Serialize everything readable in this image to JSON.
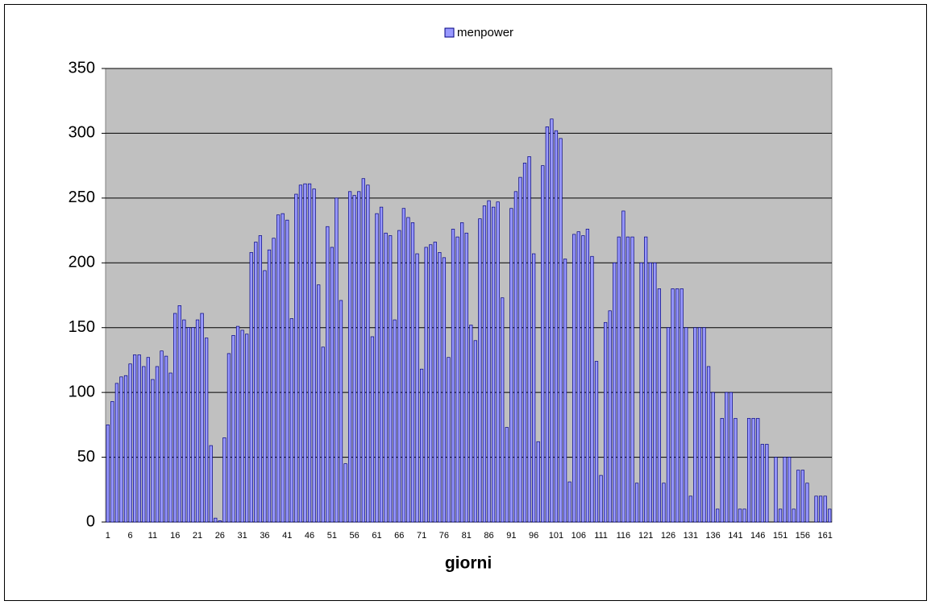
{
  "chart_data": {
    "type": "bar",
    "x_label": "giorni",
    "categories": [
      "1",
      null,
      null,
      null,
      null,
      "6",
      null,
      null,
      null,
      null,
      "11",
      null,
      null,
      null,
      null,
      "16",
      null,
      null,
      null,
      null,
      "21",
      null,
      null,
      null,
      null,
      "26",
      null,
      null,
      null,
      null,
      "31",
      null,
      null,
      null,
      null,
      "36",
      null,
      null,
      null,
      null,
      "41",
      null,
      null,
      null,
      null,
      "46",
      null,
      null,
      null,
      null,
      "51",
      null,
      null,
      null,
      null,
      "56",
      null,
      null,
      null,
      null,
      "61",
      null,
      null,
      null,
      null,
      "66",
      null,
      null,
      null,
      null,
      "71",
      null,
      null,
      null,
      null,
      "76",
      null,
      null,
      null,
      null,
      "81",
      null,
      null,
      null,
      null,
      "86",
      null,
      null,
      null,
      null,
      "91",
      null,
      null,
      null,
      null,
      "96",
      null,
      null,
      null,
      null,
      "101",
      null,
      null,
      null,
      null,
      "106",
      null,
      null,
      null,
      null,
      "111",
      null,
      null,
      null,
      null,
      "116",
      null,
      null,
      null,
      null,
      "121",
      null,
      null,
      null,
      null,
      "126",
      null,
      null,
      null,
      null,
      "131",
      null,
      null,
      null,
      null,
      "136",
      null,
      null,
      null,
      null,
      "141",
      null,
      null,
      null,
      null,
      "146",
      null,
      null,
      null,
      null,
      "151",
      null,
      null,
      null,
      null,
      "156",
      null,
      null,
      null,
      null,
      "161",
      null
    ],
    "series": [
      {
        "name": "menpower",
        "color": "#9999ff",
        "values": [
          75,
          93,
          107,
          112,
          113,
          122,
          129,
          129,
          120,
          127,
          110,
          120,
          132,
          128,
          115,
          161,
          167,
          156,
          150,
          150,
          156,
          161,
          142,
          59,
          3,
          1,
          65,
          130,
          144,
          151,
          148,
          145,
          208,
          216,
          221,
          194,
          210,
          219,
          237,
          238,
          233,
          157,
          253,
          260,
          261,
          261,
          257,
          183,
          135,
          228,
          212,
          250,
          171,
          45,
          255,
          252,
          255,
          265,
          260,
          143,
          238,
          243,
          223,
          221,
          156,
          225,
          242,
          235,
          231,
          207,
          118,
          212,
          214,
          216,
          208,
          204,
          127,
          226,
          220,
          231,
          223,
          152,
          140,
          234,
          244,
          248,
          243,
          247,
          173,
          73,
          242,
          255,
          266,
          277,
          282,
          207,
          62,
          275,
          305,
          311,
          302,
          296,
          203,
          31,
          222,
          224,
          221,
          226,
          205,
          124,
          36,
          154,
          163,
          200,
          220,
          240,
          220,
          220,
          30,
          200,
          220,
          200,
          200,
          180,
          30,
          150,
          180,
          180,
          180,
          150,
          20,
          150,
          150,
          150,
          120,
          100,
          10,
          80,
          100,
          100,
          80,
          10,
          10,
          80,
          80,
          80,
          60,
          60,
          0,
          50,
          10,
          50,
          50,
          10,
          40,
          40,
          30,
          0,
          20,
          20,
          20,
          10
        ]
      }
    ],
    "ylim": [
      0,
      350
    ],
    "yticks": [
      0,
      50,
      100,
      150,
      200,
      250,
      300,
      350
    ],
    "grid": true,
    "legend": "top"
  }
}
